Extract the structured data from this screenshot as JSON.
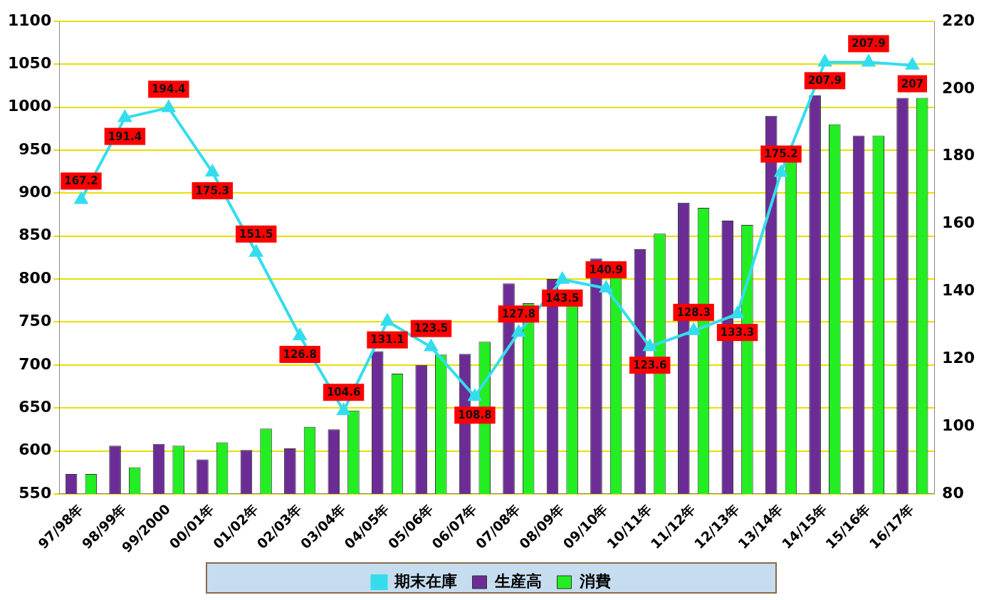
{
  "chart_data": {
    "type": "bar",
    "categories": [
      "97/98年",
      "98/99年",
      "99/2000",
      "00/01年",
      "01/02年",
      "02/03年",
      "03/04年",
      "04/05年",
      "05/06年",
      "06/07年",
      "07/08年",
      "08/09年",
      "09/10年",
      "10/11年",
      "11/12年",
      "12/13年",
      "13/14年",
      "14/15年",
      "15/16年",
      "16/17年"
    ],
    "series": [
      {
        "name": "生産高",
        "type": "bar",
        "color": "#6b2d95",
        "values": [
          573,
          606,
          608,
          590,
          601,
          603,
          625,
          716,
          700,
          713,
          795,
          800,
          824,
          835,
          889,
          868,
          990,
          1014,
          967,
          1011
        ]
      },
      {
        "name": "消費",
        "type": "bar",
        "color": "#22ee22",
        "values": [
          573,
          581,
          606,
          610,
          626,
          628,
          647,
          690,
          712,
          727,
          772,
          785,
          820,
          853,
          883,
          863,
          950,
          980,
          967,
          1011
        ]
      },
      {
        "name": "期末在庫",
        "type": "line",
        "axis": "y2",
        "color": "#33ddee",
        "marker": "triangle",
        "data_labels": true,
        "values": [
          167.2,
          191.4,
          194.4,
          175.3,
          151.5,
          126.8,
          104.6,
          131.1,
          123.5,
          108.8,
          127.8,
          143.5,
          140.9,
          123.6,
          128.3,
          133.3,
          175.2,
          207.9,
          207.9,
          207
        ]
      }
    ],
    "ylim": [
      550,
      1100
    ],
    "yticks": [
      550,
      600,
      650,
      700,
      750,
      800,
      850,
      900,
      950,
      1000,
      1050,
      1100
    ],
    "y2lim": [
      80,
      220
    ],
    "y2ticks": [
      80,
      100,
      120,
      140,
      160,
      180,
      200,
      220
    ],
    "grid": true,
    "legend": "bottom"
  }
}
